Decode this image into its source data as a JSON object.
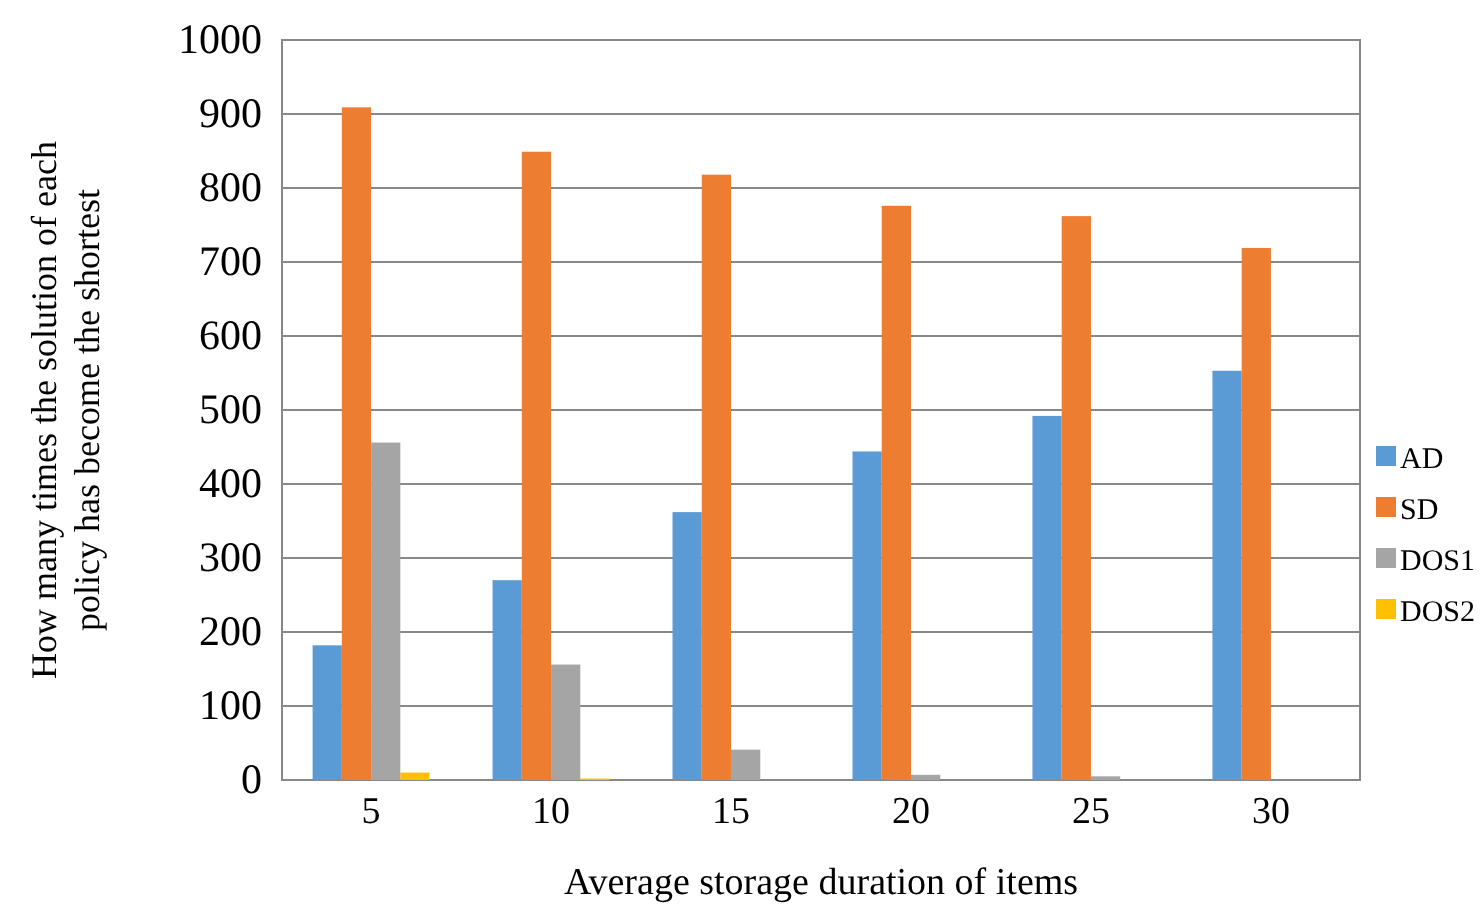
{
  "chart_data": {
    "type": "bar",
    "xlabel": "Average storage duration of items",
    "ylabel": "How many times the solution of each policy has become the shortest",
    "categories": [
      "5",
      "10",
      "15",
      "20",
      "25",
      "30"
    ],
    "series": [
      {
        "name": "AD",
        "color": "#5b9bd5",
        "values": [
          182,
          270,
          362,
          444,
          492,
          553
        ]
      },
      {
        "name": "SD",
        "color": "#ed7d31",
        "values": [
          909,
          849,
          818,
          776,
          762,
          719
        ]
      },
      {
        "name": "DOS1",
        "color": "#a5a5a5",
        "values": [
          456,
          156,
          41,
          7,
          5,
          null
        ]
      },
      {
        "name": "DOS2",
        "color": "#ffc000",
        "values": [
          10,
          2,
          0,
          0,
          0,
          0
        ]
      }
    ],
    "ylim": [
      0,
      1000
    ],
    "yticks": [
      0,
      100,
      200,
      300,
      400,
      500,
      600,
      700,
      800,
      900,
      1000
    ],
    "grid": "y",
    "legend": "right"
  }
}
